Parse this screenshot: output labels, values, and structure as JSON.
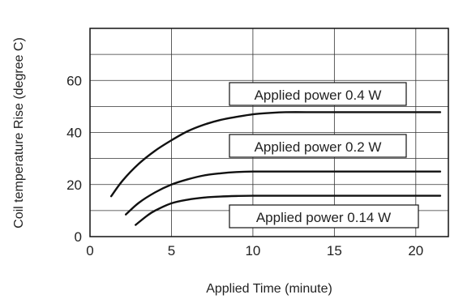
{
  "chart_data": {
    "type": "line",
    "xlabel": "Applied Time (minute)",
    "ylabel": "Coil temperature Rise (degree C)",
    "xlim": [
      0,
      22
    ],
    "ylim": [
      0,
      80
    ],
    "x_ticks": [
      "0",
      "5",
      "10",
      "15",
      "20"
    ],
    "y_ticks": [
      "0",
      "20",
      "40",
      "60"
    ],
    "grid": true,
    "series": [
      {
        "name": "Applied power 0.4 W",
        "x": [
          1.3,
          2,
          3,
          4,
          5,
          6,
          7,
          8,
          9,
          10,
          11,
          12,
          14,
          16,
          18,
          20,
          21.5
        ],
        "y": [
          15.5,
          21.5,
          28,
          33,
          37,
          40.5,
          43,
          44.8,
          46,
          47,
          47.5,
          47.8,
          47.8,
          47.8,
          47.8,
          47.8,
          47.8
        ]
      },
      {
        "name": "Applied power 0.2 W",
        "x": [
          2.2,
          3,
          4,
          5,
          6,
          7,
          8,
          9,
          10,
          12,
          14,
          16,
          18,
          20,
          21.5
        ],
        "y": [
          8.5,
          13,
          17,
          20,
          22,
          23.5,
          24.3,
          24.8,
          25,
          25,
          25,
          25,
          25,
          25,
          25
        ]
      },
      {
        "name": "Applied power 0.14 W",
        "x": [
          2.8,
          3.5,
          4,
          5,
          6,
          7,
          8,
          9,
          10,
          12,
          14,
          16,
          18,
          20,
          21.5
        ],
        "y": [
          4.5,
          8,
          10,
          12.8,
          14.2,
          15,
          15.4,
          15.6,
          15.7,
          15.7,
          15.7,
          15.7,
          15.7,
          15.7,
          15.7
        ]
      }
    ],
    "annotations": [
      "Applied power 0.4 W",
      "Applied power 0.2 W",
      "Applied power 0.14 W"
    ],
    "line_color": "#111111",
    "grid_color": "#333333"
  }
}
